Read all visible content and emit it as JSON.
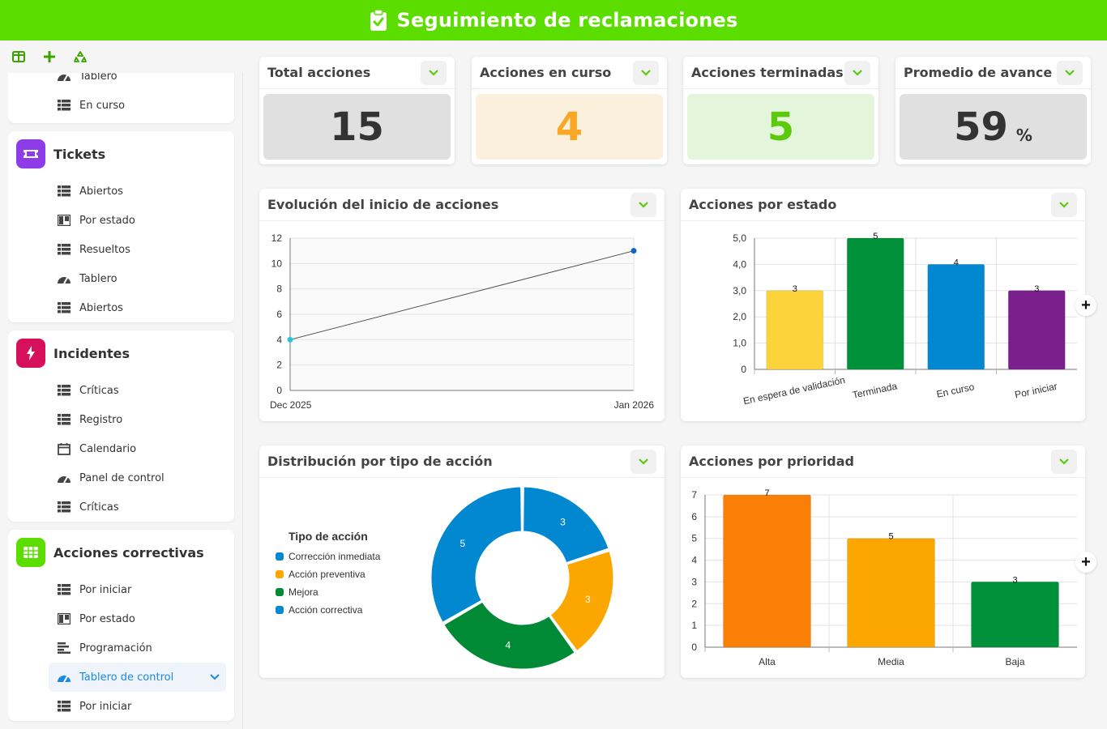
{
  "header": {
    "title": "Seguimiento de reclamaciones"
  },
  "sidebar": {
    "toolbar": [
      "layout-icon",
      "add-icon",
      "recycle-icon"
    ],
    "top_items": [
      {
        "label": "Tablero",
        "icon": "gauge-icon"
      },
      {
        "label": "En curso",
        "icon": "table-icon"
      }
    ],
    "groups": [
      {
        "title": "Tickets",
        "color": "#8e3ce8",
        "items": [
          {
            "label": "Abiertos",
            "icon": "table-icon"
          },
          {
            "label": "Por estado",
            "icon": "kanban-icon"
          },
          {
            "label": "Resueltos",
            "icon": "table-icon"
          },
          {
            "label": "Tablero",
            "icon": "gauge-icon"
          },
          {
            "label": "Abiertos",
            "icon": "table-icon"
          }
        ]
      },
      {
        "title": "Incidentes",
        "color": "#d6105a",
        "items": [
          {
            "label": "Críticas",
            "icon": "table-icon"
          },
          {
            "label": "Registro",
            "icon": "table-icon"
          },
          {
            "label": "Calendario",
            "icon": "calendar-icon"
          },
          {
            "label": "Panel de control",
            "icon": "gauge-icon"
          },
          {
            "label": "Críticas",
            "icon": "table-icon"
          }
        ]
      },
      {
        "title": "Acciones correctivas",
        "color": "#5cdd00",
        "items": [
          {
            "label": "Por iniciar",
            "icon": "table-icon"
          },
          {
            "label": "Por estado",
            "icon": "kanban-icon"
          },
          {
            "label": "Programación",
            "icon": "gantt-icon"
          },
          {
            "label": "Tablero de control",
            "icon": "gauge-icon",
            "active": true
          },
          {
            "label": "Por iniciar",
            "icon": "table-icon"
          }
        ]
      }
    ]
  },
  "kpis": [
    {
      "title": "Total acciones",
      "value": "15",
      "unit": "",
      "bg": "#e0e0e0",
      "color": "#333333"
    },
    {
      "title": "Acciones en curso",
      "value": "4",
      "unit": "",
      "bg": "#fbf0dc",
      "color": "#f9a825"
    },
    {
      "title": "Acciones terminadas",
      "value": "5",
      "unit": "",
      "bg": "#e3f6dc",
      "color": "#5cc90c"
    },
    {
      "title": "Promedio de avance",
      "value": "59",
      "unit": "%",
      "bg": "#e0e0e0",
      "color": "#333333"
    }
  ],
  "panels": {
    "line": {
      "title": "Evolución del inicio de acciones"
    },
    "status": {
      "title": "Acciones por estado"
    },
    "donut": {
      "title": "Distribución por tipo de acción",
      "legend_title": "Tipo de acción"
    },
    "priority": {
      "title": "Acciones por prioridad"
    }
  },
  "chart_data": [
    {
      "type": "line",
      "x": [
        "Dec 2025",
        "Jan 2026"
      ],
      "values": [
        4,
        11
      ],
      "ylim": [
        0,
        12
      ],
      "yticks": [
        "0",
        "2",
        "4",
        "6",
        "8",
        "10",
        "12"
      ],
      "point_colors": [
        "#26c6da",
        "#1565c0"
      ]
    },
    {
      "type": "bar",
      "categories": [
        "En espera de validación",
        "Terminada",
        "En curso",
        "Por iniciar"
      ],
      "values": [
        3,
        5,
        4,
        3
      ],
      "colors": [
        "#fdd33b",
        "#00913a",
        "#0288d1",
        "#7b1f8c"
      ],
      "ylim": [
        0,
        5
      ],
      "yticks": [
        "0",
        "1,0",
        "2,0",
        "3,0",
        "4,0",
        "5,0"
      ]
    },
    {
      "type": "pie",
      "donut": true,
      "labels": [
        "Corrección inmediata",
        "Acción preventiva",
        "Mejora",
        "Acción correctiva"
      ],
      "values": [
        3,
        3,
        4,
        5
      ],
      "colors": [
        "#0288d1",
        "#fba700",
        "#008a36",
        "#0288d1"
      ]
    },
    {
      "type": "bar",
      "categories": [
        "Alta",
        "Media",
        "Baja"
      ],
      "values": [
        7,
        5,
        3
      ],
      "colors": [
        "#f97f06",
        "#fba700",
        "#00913a"
      ],
      "ylim": [
        0,
        7
      ],
      "yticks": [
        "0",
        "1",
        "2",
        "3",
        "4",
        "5",
        "6",
        "7"
      ]
    }
  ]
}
